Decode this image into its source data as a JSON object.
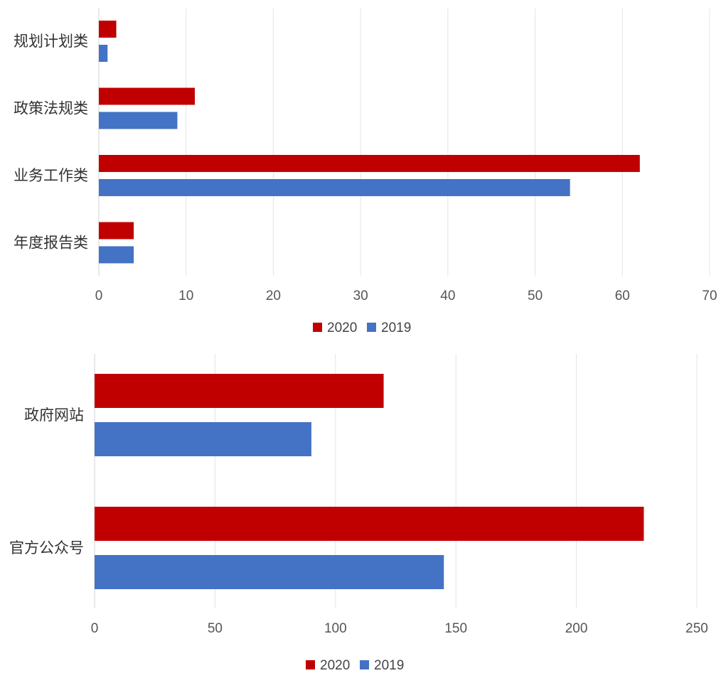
{
  "chart_data": [
    {
      "type": "bar",
      "orientation": "horizontal",
      "categories": [
        "规划计划类",
        "政策法规类",
        "业务工作类",
        "年度报告类"
      ],
      "series": [
        {
          "name": "2020",
          "color": "#C00000",
          "values": [
            2,
            11,
            62,
            4
          ]
        },
        {
          "name": "2019",
          "color": "#4472C4",
          "values": [
            1,
            9,
            54,
            4
          ]
        }
      ],
      "xlim": [
        0,
        70
      ],
      "ticks": [
        "0",
        "10",
        "20",
        "30",
        "40",
        "50",
        "60",
        "70"
      ],
      "grid": true,
      "legend_position": "bottom"
    },
    {
      "type": "bar",
      "orientation": "horizontal",
      "categories": [
        "政府网站",
        "官方公众号"
      ],
      "series": [
        {
          "name": "2020",
          "color": "#C00000",
          "values": [
            120,
            228
          ]
        },
        {
          "name": "2019",
          "color": "#4472C4",
          "values": [
            90,
            145
          ]
        }
      ],
      "xlim": [
        0,
        250
      ],
      "ticks": [
        "0",
        "50",
        "100",
        "150",
        "200",
        "250"
      ],
      "grid": true,
      "legend_position": "bottom"
    }
  ]
}
